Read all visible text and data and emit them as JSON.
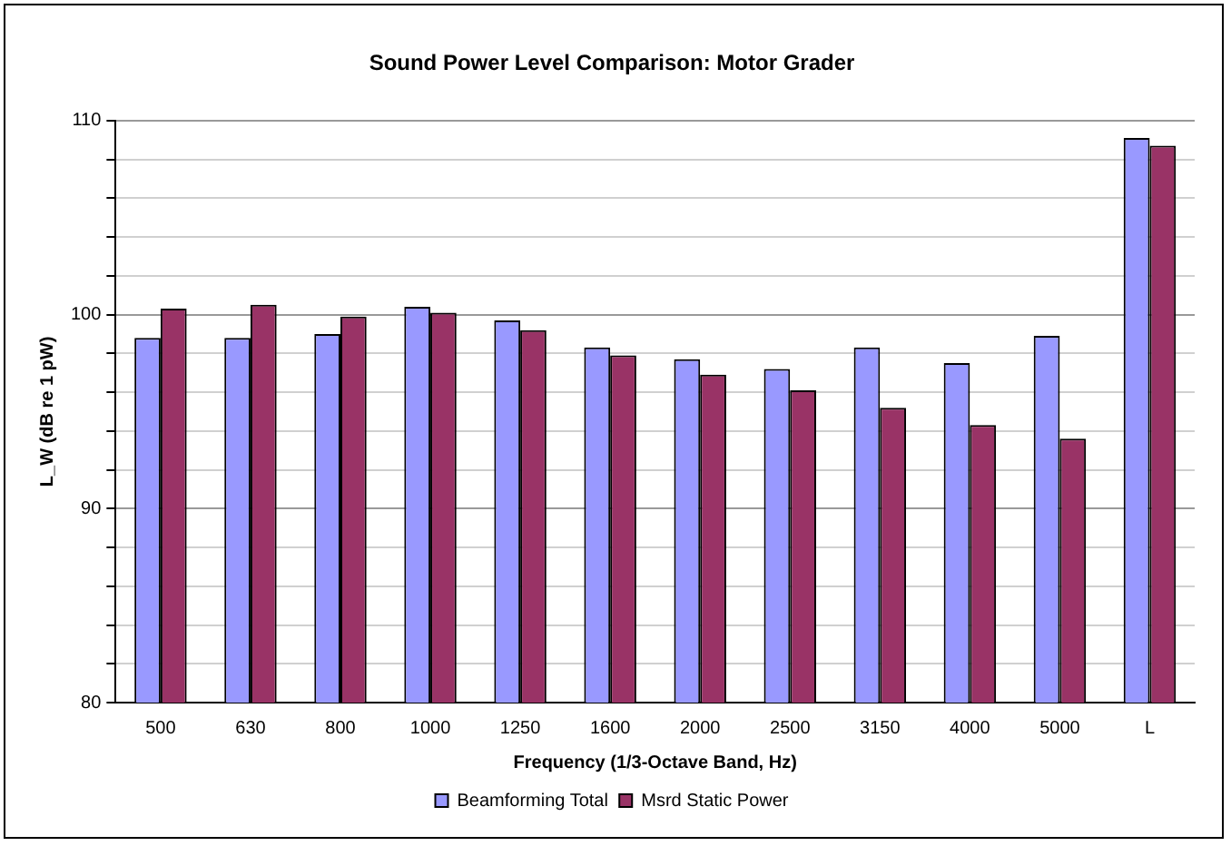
{
  "chart_data": {
    "type": "bar",
    "title": "Sound Power Level Comparison: Motor Grader",
    "xlabel": "Frequency (1/3-Octave Band, Hz)",
    "ylabel": "L_W (dB re 1 pW)",
    "categories": [
      "500",
      "630",
      "800",
      "1000",
      "1250",
      "1600",
      "2000",
      "2500",
      "3150",
      "4000",
      "5000",
      "L"
    ],
    "series": [
      {
        "name": "Beamforming Total",
        "color": "#9999ff",
        "values": [
          98.8,
          98.8,
          99.0,
          100.4,
          99.7,
          98.3,
          97.7,
          97.2,
          98.3,
          97.5,
          98.9,
          109.1
        ]
      },
      {
        "name": "Msrd Static Power",
        "color": "#993366",
        "values": [
          100.3,
          100.5,
          99.9,
          100.1,
          99.2,
          97.9,
          96.9,
          96.1,
          95.2,
          94.3,
          93.6,
          108.7
        ]
      }
    ],
    "ylim": [
      80,
      110
    ],
    "yticks": [
      80,
      {
        "value": 82,
        "label": null
      },
      {
        "value": 84,
        "label": null
      },
      {
        "value": 86,
        "label": null
      },
      {
        "value": 88,
        "label": null
      },
      90,
      {
        "value": 92,
        "label": null
      },
      {
        "value": 94,
        "label": null
      },
      {
        "value": 96,
        "label": null
      },
      {
        "value": 98,
        "label": null
      },
      100,
      {
        "value": 102,
        "label": null
      },
      {
        "value": 104,
        "label": null
      },
      {
        "value": 106,
        "label": null
      },
      {
        "value": 108,
        "label": null
      },
      110
    ],
    "grid": "y",
    "legend": "bottom"
  }
}
